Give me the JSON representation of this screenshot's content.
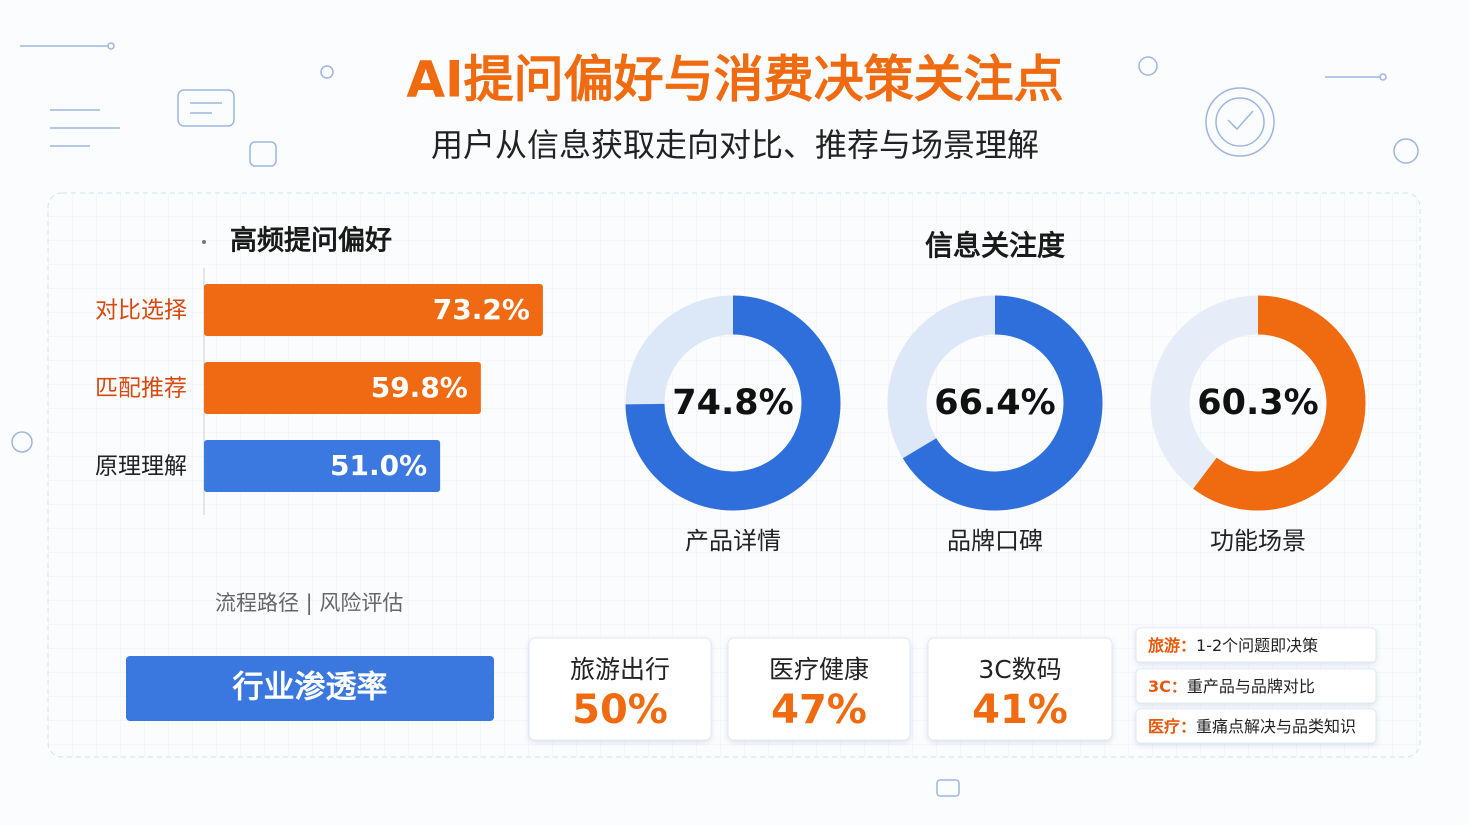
{
  "header": {
    "title": "AI提问偏好与消费决策关注点",
    "subtitle": "用户从信息获取走向对比、推荐与场景理解"
  },
  "chart_data": [
    {
      "type": "bar",
      "title": "高频提问偏好",
      "categories": [
        "对比选择",
        "匹配推荐",
        "原理理解"
      ],
      "values": [
        73.2,
        59.8,
        51.0
      ],
      "value_labels": [
        "73.2%",
        "59.8%",
        "51.0%"
      ],
      "colors": [
        "#ef6a12",
        "#ef6a12",
        "#3b78e0"
      ]
    },
    {
      "type": "donut",
      "title": "信息关注度",
      "categories": [
        "产品详情",
        "品牌口碑",
        "功能场景"
      ],
      "values": [
        74.8,
        66.4,
        60.3
      ],
      "value_labels": [
        "74.8%",
        "66.4%",
        "60.3%"
      ],
      "colors": [
        "#2f6fdc",
        "#2f6fdc",
        "#f06a10"
      ]
    }
  ],
  "note": "流程路径 | 风险评估",
  "industry": {
    "title": "行业渗透率",
    "items": [
      {
        "name": "旅游出行",
        "value": "50%"
      },
      {
        "name": "医疗健康",
        "value": "47%"
      },
      {
        "name": "3C数码",
        "value": "41%"
      }
    ]
  },
  "tips": [
    {
      "label": "旅游：",
      "text": "1-2个问题即决策"
    },
    {
      "label": "3C：",
      "text": "重产品与品牌对比"
    },
    {
      "label": "医疗：",
      "text": "重痛点解决与品类知识"
    }
  ]
}
